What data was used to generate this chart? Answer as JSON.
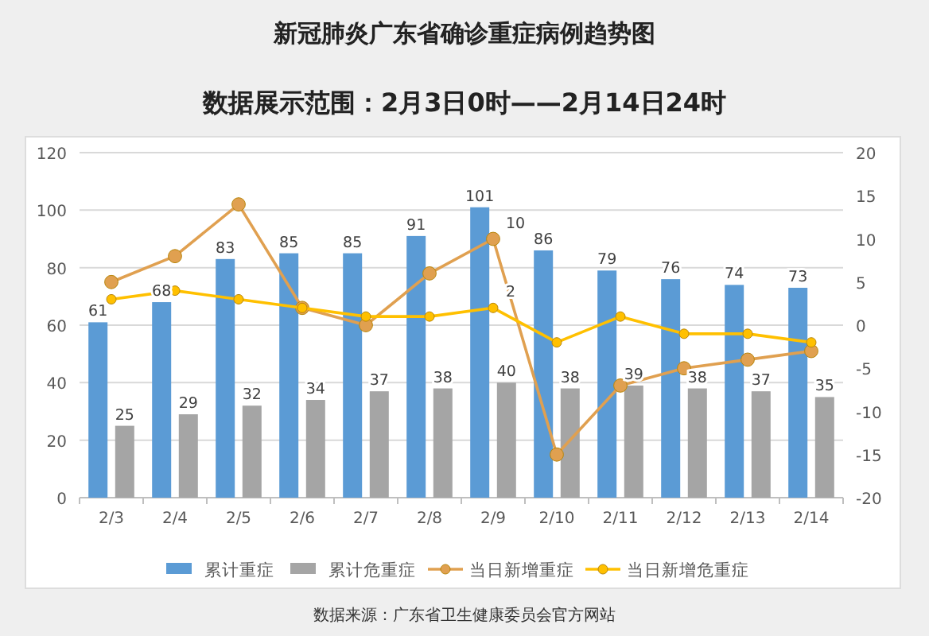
{
  "chart_data": {
    "type": "bar",
    "title": "新冠肺炎广东省确诊重症病例趋势图",
    "subtitle": "数据展示范围：2月3日0时——2月14日24时",
    "categories": [
      "2/3",
      "2/4",
      "2/5",
      "2/6",
      "2/7",
      "2/8",
      "2/9",
      "2/10",
      "2/11",
      "2/12",
      "2/13",
      "2/14"
    ],
    "series": [
      {
        "name": "累计重症",
        "color": "#5b9bd5",
        "values": [
          61,
          68,
          83,
          85,
          85,
          91,
          101,
          86,
          79,
          76,
          74,
          73
        ],
        "value_labels": [
          "61",
          "68",
          "83",
          "85",
          "85",
          "91",
          "101",
          "86",
          "79",
          "76",
          "74",
          "73"
        ]
      },
      {
        "name": "累计危重症",
        "color": "#a5a5a5",
        "values": [
          25,
          29,
          32,
          34,
          37,
          38,
          40,
          38,
          39,
          38,
          37,
          35
        ],
        "value_labels": [
          "25",
          "29",
          "32",
          "34",
          "37",
          "38",
          "40",
          "38",
          "39",
          "38",
          "37",
          "35"
        ]
      },
      {
        "name": "当日新增重症",
        "type": "line",
        "axis": "y2",
        "color": "#e0a050",
        "values": [
          5,
          8,
          14,
          2,
          0,
          6,
          10,
          -15,
          -7,
          -5,
          -4,
          -3
        ],
        "value_labels": [
          null,
          null,
          null,
          null,
          null,
          null,
          "10",
          null,
          null,
          null,
          null,
          null
        ]
      },
      {
        "name": "当日新增危重症",
        "type": "line",
        "axis": "y2",
        "color": "#ffc000",
        "values": [
          3,
          4,
          3,
          2,
          1,
          1,
          2,
          -2,
          1,
          -1,
          -1,
          -2
        ],
        "value_labels": [
          null,
          null,
          null,
          null,
          null,
          null,
          "2",
          null,
          null,
          null,
          null,
          null
        ]
      }
    ],
    "ylim": [
      0,
      120
    ],
    "yticks": [
      0,
      20,
      40,
      60,
      80,
      100,
      120
    ],
    "y2lim": [
      -20,
      20
    ],
    "y2ticks": [
      -20,
      -15,
      -10,
      -5,
      0,
      5,
      10,
      15,
      20
    ],
    "grid": "y",
    "legend": "bottom",
    "marker": "circle",
    "annotations": [
      "数据来源：广东省卫生健康委员会官方网站"
    ]
  }
}
